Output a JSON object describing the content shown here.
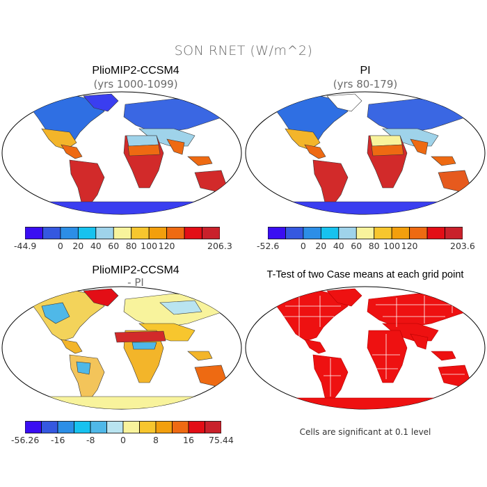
{
  "figure": {
    "title": "SON RNET (W/m^2)"
  },
  "panels": [
    {
      "id": "model",
      "title": "PlioMIP2-CCSM4",
      "subtitle": "(yrs 1000-1099)",
      "colorbar": {
        "colors": [
          "#3a0ef2",
          "#3558e0",
          "#2c8ee6",
          "#17c2ef",
          "#9fd3ea",
          "#f8f39c",
          "#f7c62e",
          "#f29f0d",
          "#ee6a12",
          "#e30e16",
          "#c9212b"
        ],
        "labels": [
          "-44.9",
          "0",
          "20",
          "40",
          "60",
          "80",
          "100",
          "120",
          "206.3"
        ],
        "label_boundaries": [
          0,
          2,
          3,
          4,
          5,
          6,
          7,
          8,
          11
        ]
      }
    },
    {
      "id": "pi",
      "title": "PI",
      "subtitle": "(yrs 80-179)",
      "colorbar": {
        "colors": [
          "#3a0ef2",
          "#3558e0",
          "#2c8ee6",
          "#17c2ef",
          "#9fd3ea",
          "#f8f39c",
          "#f7c62e",
          "#f29f0d",
          "#ee6a12",
          "#e30e16",
          "#c9212b"
        ],
        "labels": [
          "-52.6",
          "0",
          "20",
          "40",
          "60",
          "80",
          "100",
          "120",
          "203.6"
        ],
        "label_boundaries": [
          0,
          2,
          3,
          4,
          5,
          6,
          7,
          8,
          11
        ]
      }
    },
    {
      "id": "diff",
      "title": "PlioMIP2-CCSM4",
      "subtitle": "- PI",
      "colorbar": {
        "colors": [
          "#3a0ef2",
          "#3558e0",
          "#2c8ee6",
          "#17c2ef",
          "#4fb8e8",
          "#b9e4f0",
          "#f8f39c",
          "#f7c62e",
          "#f29f0d",
          "#ee6a12",
          "#e30e16",
          "#c9212b"
        ],
        "labels": [
          "-56.26",
          "-16",
          "-8",
          "0",
          "8",
          "16",
          "75.44"
        ],
        "label_boundaries": [
          0,
          2,
          4,
          6,
          8,
          10,
          12
        ]
      }
    },
    {
      "id": "ttest",
      "title": "T-Test of two Case means at each grid point",
      "note": "Cells are significant at 0.1 level"
    }
  ]
}
